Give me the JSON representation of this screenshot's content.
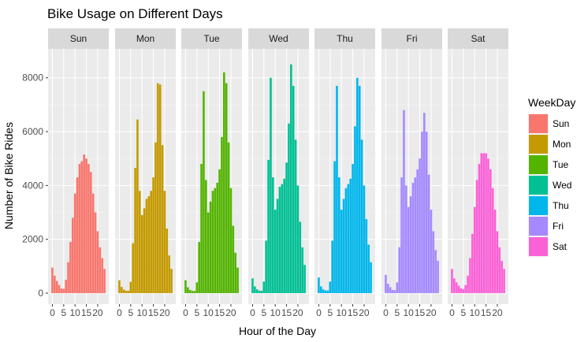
{
  "chart_data": {
    "type": "bar",
    "title": "Bike Usage on Different Days",
    "xlabel": "Hour of the Day",
    "ylabel": "Number of Bike Rides",
    "facet_labels": [
      "Sun",
      "Mon",
      "Tue",
      "Wed",
      "Thu",
      "Fri",
      "Sat"
    ],
    "x_ticks": [
      0,
      5,
      10,
      15,
      20
    ],
    "x_tick_labels": [
      "0",
      "5",
      "10",
      "15",
      "20"
    ],
    "y_ticks": [
      0,
      2000,
      4000,
      6000,
      8000
    ],
    "y_tick_labels": [
      "0",
      "2000",
      "4000",
      "6000",
      "8000"
    ],
    "ylim": [
      0,
      8900
    ],
    "xlim": [
      -0.5,
      23.5
    ],
    "legend": {
      "title": "WeekDay",
      "position": "right",
      "entries": [
        "Sun",
        "Mon",
        "Tue",
        "Wed",
        "Thu",
        "Fri",
        "Sat"
      ]
    },
    "colors": {
      "Sun": "#F8766D",
      "Mon": "#C49A00",
      "Tue": "#53B400",
      "Wed": "#00C094",
      "Thu": "#00B6EB",
      "Fri": "#A58AFF",
      "Sat": "#FB61D7"
    },
    "grid": true,
    "categories": [
      0,
      1,
      2,
      3,
      4,
      5,
      6,
      7,
      8,
      9,
      10,
      11,
      12,
      13,
      14,
      15,
      16,
      17,
      18,
      19,
      20,
      21,
      22,
      23
    ],
    "series": [
      {
        "name": "Sun",
        "values": [
          950,
          650,
          450,
          300,
          170,
          160,
          500,
          1150,
          1900,
          2800,
          3700,
          4300,
          4800,
          4900,
          5150,
          5000,
          4800,
          4500,
          3700,
          3000,
          2300,
          1700,
          1300,
          900
        ]
      },
      {
        "name": "Mon",
        "values": [
          480,
          230,
          130,
          90,
          90,
          420,
          1850,
          4650,
          6450,
          3800,
          2900,
          3150,
          3500,
          3600,
          3800,
          4300,
          5600,
          7800,
          7750,
          5500,
          3800,
          2400,
          1400,
          900
        ]
      },
      {
        "name": "Tue",
        "values": [
          480,
          220,
          120,
          80,
          80,
          400,
          1900,
          4800,
          7500,
          4200,
          3000,
          3400,
          3800,
          3900,
          4100,
          4600,
          5800,
          8200,
          7800,
          5600,
          3900,
          2500,
          1500,
          950
        ]
      },
      {
        "name": "Wed",
        "values": [
          550,
          250,
          140,
          90,
          90,
          430,
          1950,
          4950,
          8000,
          4300,
          3100,
          3500,
          3950,
          4050,
          4250,
          4850,
          6300,
          8500,
          7700,
          5700,
          4000,
          2650,
          1700,
          1050
        ]
      },
      {
        "name": "Thu",
        "values": [
          580,
          250,
          140,
          100,
          100,
          430,
          1950,
          4900,
          7700,
          4300,
          3100,
          3500,
          3900,
          4050,
          4250,
          4800,
          6200,
          8000,
          7700,
          5700,
          4000,
          2750,
          1800,
          1150
        ]
      },
      {
        "name": "Fri",
        "values": [
          680,
          350,
          220,
          120,
          110,
          400,
          1700,
          4300,
          6800,
          4000,
          3200,
          3600,
          4100,
          4300,
          4600,
          5000,
          6000,
          6700,
          6000,
          4400,
          3100,
          2300,
          1600,
          1200
        ]
      },
      {
        "name": "Sat",
        "values": [
          900,
          550,
          400,
          280,
          180,
          150,
          300,
          650,
          1300,
          2200,
          3200,
          4200,
          4800,
          5200,
          5200,
          5200,
          5000,
          4600,
          3900,
          3100,
          2300,
          1700,
          1200,
          900
        ]
      }
    ]
  }
}
